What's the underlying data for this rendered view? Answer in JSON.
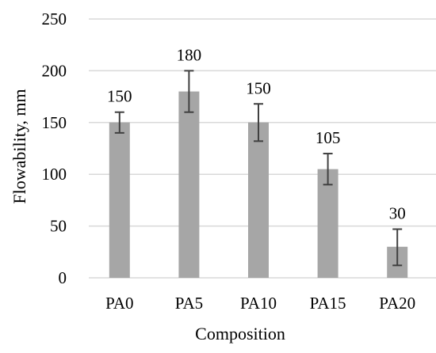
{
  "chart_data": {
    "type": "bar",
    "title": "",
    "xlabel": "Composition",
    "ylabel": "Flowability, mm",
    "categories": [
      "PA0",
      "PA5",
      "PA10",
      "PA15",
      "PA20"
    ],
    "values": [
      150,
      180,
      150,
      105,
      30
    ],
    "data_labels": [
      "150",
      "180",
      "150",
      "105",
      "30"
    ],
    "error_low": [
      140,
      160,
      132,
      90,
      12
    ],
    "error_high": [
      160,
      200,
      168,
      120,
      47
    ],
    "ylim": [
      0,
      250
    ],
    "yticks": [
      0,
      50,
      100,
      150,
      200,
      250
    ],
    "ytick_labels": [
      "0",
      "50",
      "100",
      "150",
      "200",
      "250"
    ],
    "grid": "horizontal",
    "legend": "none",
    "bar_color": "#a6a6a6",
    "errorbar_color": "#404040",
    "grid_color": "#d9d9d9"
  }
}
